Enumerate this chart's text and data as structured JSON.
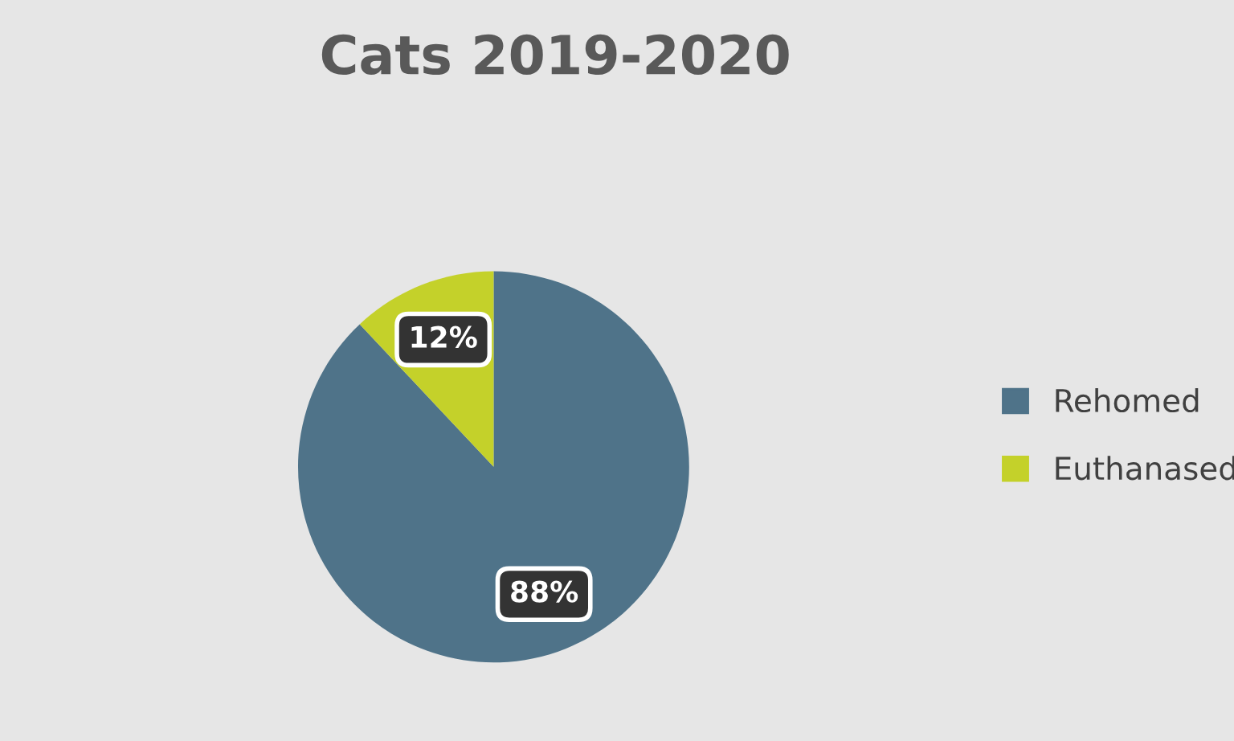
{
  "chart_data": {
    "type": "pie",
    "title": "Cats 2019-2020",
    "categories": [
      "Rehomed",
      "Euthanased"
    ],
    "values": [
      88,
      12
    ],
    "colors": [
      "#4f7389",
      "#c4d12a"
    ],
    "value_labels": [
      "88%",
      "12%"
    ],
    "legend": "right"
  }
}
